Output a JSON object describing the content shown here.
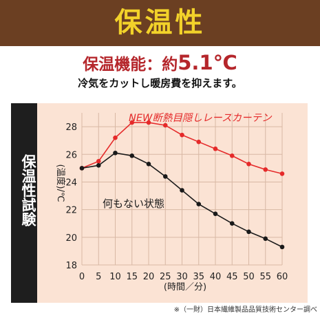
{
  "banner": {
    "title": "保温性"
  },
  "headline": {
    "prefix": "保温機能：約",
    "value": "5.1℃"
  },
  "subline": "冷気をカットし暖房費を抑えます。",
  "side_label": "保温性試験",
  "footnote": "※（一財）日本繊維製品品質技術センター調べ",
  "colors": {
    "banner_bg": "#6b3f22",
    "banner_text": "#f2d22a",
    "accent_red": "#b5262b",
    "series_red": "#e52a2a",
    "series_black": "#1a1a1a",
    "plot_bg": "#fbe3d4"
  },
  "chart_data": {
    "type": "line",
    "x": [
      0,
      5,
      10,
      15,
      20,
      25,
      30,
      35,
      40,
      45,
      50,
      55,
      60
    ],
    "xticks": [
      "0",
      "5",
      "10",
      "15",
      "20",
      "25",
      "30",
      "35",
      "40",
      "45",
      "50",
      "55",
      "60"
    ],
    "yticks": [
      "18",
      "20",
      "22",
      "24",
      "26",
      "28"
    ],
    "xlim": [
      0,
      60
    ],
    "ylim": [
      18,
      29
    ],
    "xlabel": "(時間／分)",
    "ylabel": "(温度)/℃",
    "series": [
      {
        "name": "NEW断熱目隠しレースカーテン",
        "color": "#e52a2a",
        "values": [
          25.0,
          25.5,
          27.2,
          28.3,
          28.3,
          28.1,
          27.4,
          26.9,
          26.4,
          25.9,
          25.3,
          24.9,
          24.6
        ]
      },
      {
        "name": "何もない状態",
        "color": "#1a1a1a",
        "values": [
          25.0,
          25.2,
          26.1,
          25.9,
          25.3,
          24.4,
          23.4,
          22.4,
          21.7,
          21.0,
          20.4,
          19.9,
          19.3
        ]
      }
    ],
    "grid": true
  }
}
